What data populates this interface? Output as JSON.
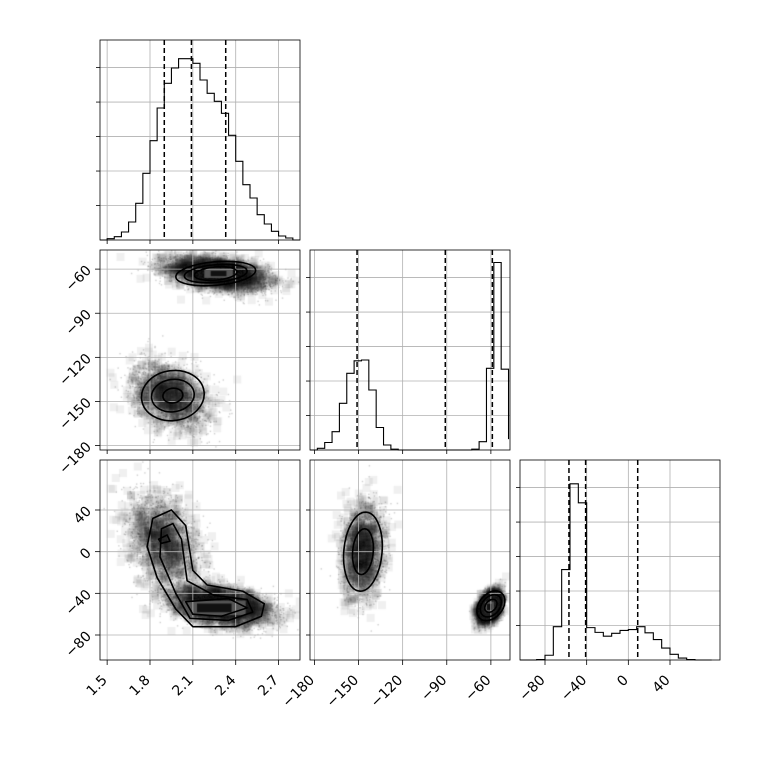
{
  "chart_data": {
    "type": "corner",
    "parameters": [
      {
        "ticks": [
          1.5,
          1.8,
          2.1,
          2.4,
          2.7
        ],
        "tick_labels": [
          "1.5",
          "1.8",
          "2.1",
          "2.4",
          "2.7"
        ],
        "range": [
          1.45,
          2.85
        ]
      },
      {
        "ticks": [
          -180,
          -150,
          -120,
          -90,
          -60
        ],
        "tick_labels": [
          "−180",
          "−150",
          "−120",
          "−90",
          "−60"
        ],
        "range": [
          -183,
          -47
        ]
      },
      {
        "ticks": [
          -80,
          -40,
          0,
          40
        ],
        "tick_labels": [
          "−80",
          "−40",
          "0",
          "40"
        ],
        "range": [
          -104,
          88
        ]
      }
    ],
    "histograms": [
      {
        "param": 0,
        "edges": [
          1.45,
          1.5,
          1.55,
          1.6,
          1.65,
          1.7,
          1.75,
          1.8,
          1.85,
          1.9,
          1.95,
          2.0,
          2.05,
          2.1,
          2.15,
          2.2,
          2.25,
          2.3,
          2.35,
          2.4,
          2.45,
          2.5,
          2.55,
          2.6,
          2.65,
          2.7,
          2.75,
          2.8,
          2.85
        ],
        "counts": [
          0,
          2,
          5,
          12,
          27,
          55,
          100,
          149,
          198,
          235,
          258,
          272,
          272,
          265,
          240,
          220,
          208,
          190,
          157,
          118,
          83,
          63,
          38,
          24,
          13,
          6,
          3,
          0
        ],
        "ylim": [
          0,
          300
        ],
        "quantiles": [
          1.9,
          2.09,
          2.33
        ]
      },
      {
        "param": 1,
        "edges": [
          -183,
          -178,
          -173,
          -168,
          -163,
          -158,
          -153,
          -148,
          -143,
          -138,
          -133,
          -128,
          -123,
          -118,
          -113,
          -108,
          -103,
          -98,
          -93,
          -88,
          -83,
          -78,
          -73,
          -68,
          -63,
          -58,
          -53,
          -48
        ],
        "counts": [
          0,
          2,
          9,
          22,
          56,
          92,
          107,
          108,
          72,
          27,
          6,
          1,
          0,
          0,
          0,
          0,
          0,
          0,
          0,
          0,
          0,
          0,
          1,
          10,
          98,
          225,
          97,
          13
        ],
        "ylim": [
          0,
          240
        ],
        "quantiles": [
          -151,
          -91,
          -59
        ]
      },
      {
        "param": 2,
        "edges": [
          -104,
          -96,
          -88,
          -80,
          -72,
          -64,
          -56,
          -48,
          -40,
          -32,
          -24,
          -16,
          -8,
          0,
          8,
          16,
          24,
          32,
          40,
          48,
          56,
          64,
          72,
          80
        ],
        "counts": [
          0,
          0,
          1,
          10,
          70,
          190,
          370,
          330,
          68,
          58,
          50,
          56,
          62,
          64,
          70,
          57,
          43,
          25,
          12,
          4,
          1,
          0,
          0
        ],
        "ylim": [
          0,
          420
        ],
        "quantiles": [
          -57,
          -41,
          9
        ]
      }
    ],
    "panels_2d": [
      {
        "x_param": 0,
        "y_param": 1,
        "clusters": [
          {
            "center": [
              2.28,
              -63
            ],
            "std": [
              0.17,
              5.5
            ],
            "n": 3300,
            "rho": -0.4
          },
          {
            "center": [
              1.94,
              -146
            ],
            "std": [
              0.13,
              11
            ],
            "n": 1700,
            "rho": -0.3
          }
        ],
        "peaks": [
          {
            "center": [
              2.28,
              -63
            ],
            "dx": 0.1,
            "dy": 3
          }
        ],
        "contours": [
          {
            "center": [
              2.26,
              -63
            ],
            "rx": 0.28,
            "ry": 8,
            "rot": -5
          },
          {
            "center": [
              2.26,
              -63
            ],
            "rx": 0.22,
            "ry": 6,
            "rot": -5
          },
          {
            "center": [
              2.26,
              -63
            ],
            "rx": 0.15,
            "ry": 4.5,
            "rot": -5
          },
          {
            "center": [
              1.96,
              -146
            ],
            "rx": 0.22,
            "ry": 17,
            "rot": -8
          },
          {
            "center": [
              1.96,
              -146
            ],
            "rx": 0.15,
            "ry": 11,
            "rot": -8
          },
          {
            "center": [
              1.96,
              -146
            ],
            "rx": 0.07,
            "ry": 5,
            "rot": -8
          }
        ]
      },
      {
        "x_param": 0,
        "y_param": 2,
        "clusters": [
          {
            "center": [
              2.3,
              -52
            ],
            "std": [
              0.17,
              9
            ],
            "n": 3300,
            "rho": -0.35
          },
          {
            "center": [
              1.9,
              10
            ],
            "std": [
              0.12,
              22
            ],
            "n": 1700,
            "rho": -0.3
          }
        ],
        "peaks": [
          {
            "center": [
              2.25,
              -54
            ],
            "dx": 0.22,
            "dy": 7
          }
        ],
        "contour_polylines": [
          [
            [
              1.82,
              32
            ],
            [
              1.95,
              40
            ],
            [
              2.05,
              25
            ],
            [
              2.1,
              -18
            ],
            [
              2.2,
              -32
            ],
            [
              2.45,
              -38
            ],
            [
              2.6,
              -50
            ],
            [
              2.58,
              -62
            ],
            [
              2.4,
              -72
            ],
            [
              2.1,
              -72
            ],
            [
              1.98,
              -55
            ],
            [
              1.85,
              -25
            ],
            [
              1.78,
              5
            ],
            [
              1.82,
              32
            ]
          ],
          [
            [
              1.88,
              22
            ],
            [
              1.96,
              27
            ],
            [
              2.02,
              12
            ],
            [
              2.06,
              -28
            ],
            [
              2.25,
              -42
            ],
            [
              2.48,
              -46
            ],
            [
              2.52,
              -58
            ],
            [
              2.35,
              -66
            ],
            [
              2.08,
              -64
            ],
            [
              1.98,
              -40
            ],
            [
              1.87,
              -5
            ],
            [
              1.88,
              22
            ]
          ],
          [
            [
              2.05,
              -48
            ],
            [
              2.35,
              -45
            ],
            [
              2.48,
              -54
            ],
            [
              2.3,
              -62
            ],
            [
              2.1,
              -60
            ],
            [
              2.05,
              -48
            ]
          ],
          [
            [
              1.86,
              12
            ],
            [
              1.92,
              16
            ],
            [
              1.94,
              10
            ],
            [
              1.88,
              8
            ],
            [
              1.86,
              12
            ]
          ]
        ]
      },
      {
        "x_param": 1,
        "y_param": 2,
        "clusters": [
          {
            "center": [
              -147,
              0
            ],
            "std": [
              7,
              22
            ],
            "n": 1700,
            "rho": 0.1
          },
          {
            "center": [
              -61,
              -53
            ],
            "std": [
              3.6,
              7
            ],
            "n": 3300,
            "rho": 0.4
          }
        ],
        "peaks": [
          {
            "center": [
              -61,
              -53
            ],
            "dx": 3,
            "dy": 5
          }
        ],
        "contours": [
          {
            "center": [
              -147,
              0
            ],
            "rx": 13,
            "ry": 38,
            "rot": 5
          },
          {
            "center": [
              -147,
              0
            ],
            "rx": 7,
            "ry": 22,
            "rot": 5
          },
          {
            "center": [
              -60,
              -52
            ],
            "rx": 8,
            "ry": 16,
            "rot": 40
          },
          {
            "center": [
              -60,
              -52
            ],
            "rx": 6,
            "ry": 12,
            "rot": 40
          },
          {
            "center": [
              -60,
              -52
            ],
            "rx": 3.5,
            "ry": 7,
            "rot": 40
          }
        ]
      }
    ]
  }
}
